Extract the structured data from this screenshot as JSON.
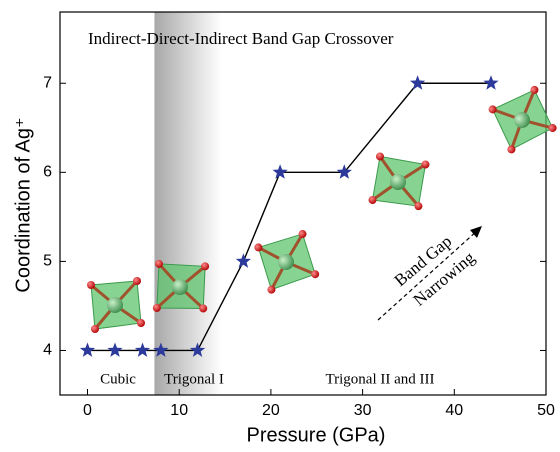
{
  "chart_data": {
    "type": "line",
    "title": "Indirect-Direct-Indirect Band Gap Crossover",
    "x_label": "Pressure (GPa)",
    "y_label": "Coordination of Ag⁺",
    "x": [
      0,
      3,
      6,
      8,
      12,
      17,
      21,
      28,
      36,
      44
    ],
    "series": [
      {
        "color": "#2b3a9b",
        "values": [
          4,
          4,
          4,
          4,
          4,
          5,
          6,
          6,
          7,
          7
        ]
      }
    ],
    "xlim": [
      -3,
      50
    ],
    "ylim": [
      3.5,
      7.8
    ],
    "xticks": [
      0,
      10,
      20,
      30,
      40,
      50
    ],
    "yticks": [
      4,
      5,
      6,
      7
    ],
    "shaded_region": [
      7.3,
      14.6
    ],
    "annotations": [
      "Cubic",
      "Trigonal I",
      "Trigonal II and III",
      "Band Gap",
      "Narrowing"
    ]
  }
}
